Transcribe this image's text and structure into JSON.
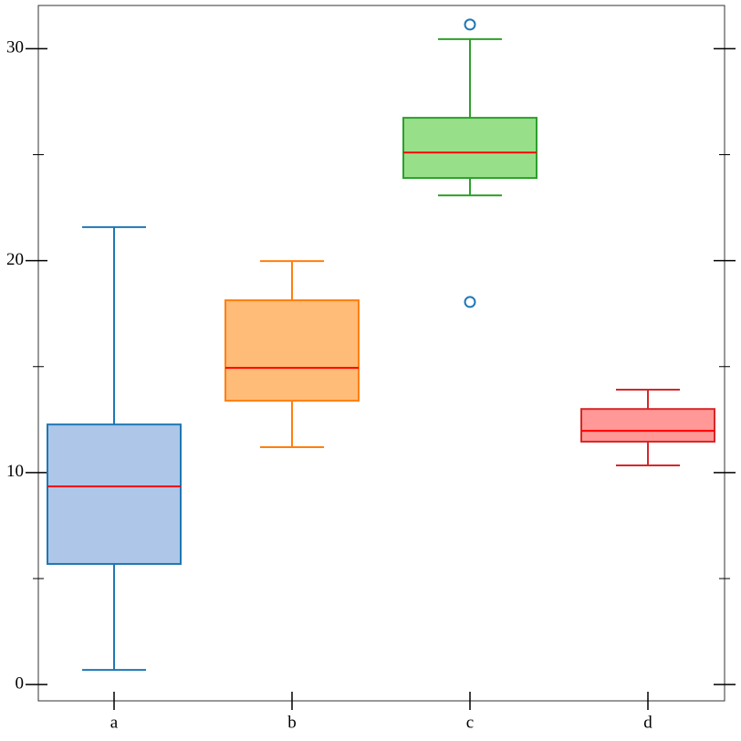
{
  "chart_data": {
    "type": "box",
    "categories": [
      "a",
      "b",
      "c",
      "d"
    ],
    "whislo": [
      0.69,
      11.2,
      23.08,
      10.34
    ],
    "q1": [
      5.69,
      13.39,
      23.9,
      11.46
    ],
    "med": [
      9.35,
      14.94,
      25.1,
      11.97
    ],
    "q3": [
      12.27,
      18.13,
      26.74,
      13.0
    ],
    "whishi": [
      21.58,
      19.98,
      30.45,
      13.91
    ],
    "fliers": [
      [],
      [],
      [
        31.14,
        18.05
      ],
      []
    ],
    "colors": [
      "#1f77b4",
      "#ff7f0e",
      "#2ca02c",
      "#d62728"
    ],
    "fills": [
      "#aec7e8",
      "#ffbb78",
      "#98df8a",
      "#ff9896"
    ],
    "median_color": "#ff0000",
    "flier_color": "#1f77b4",
    "ylim": [
      -0.77,
      32.04
    ],
    "yticks": [
      0,
      10,
      20,
      30
    ],
    "yminorticks": [
      5,
      15,
      25
    ]
  }
}
